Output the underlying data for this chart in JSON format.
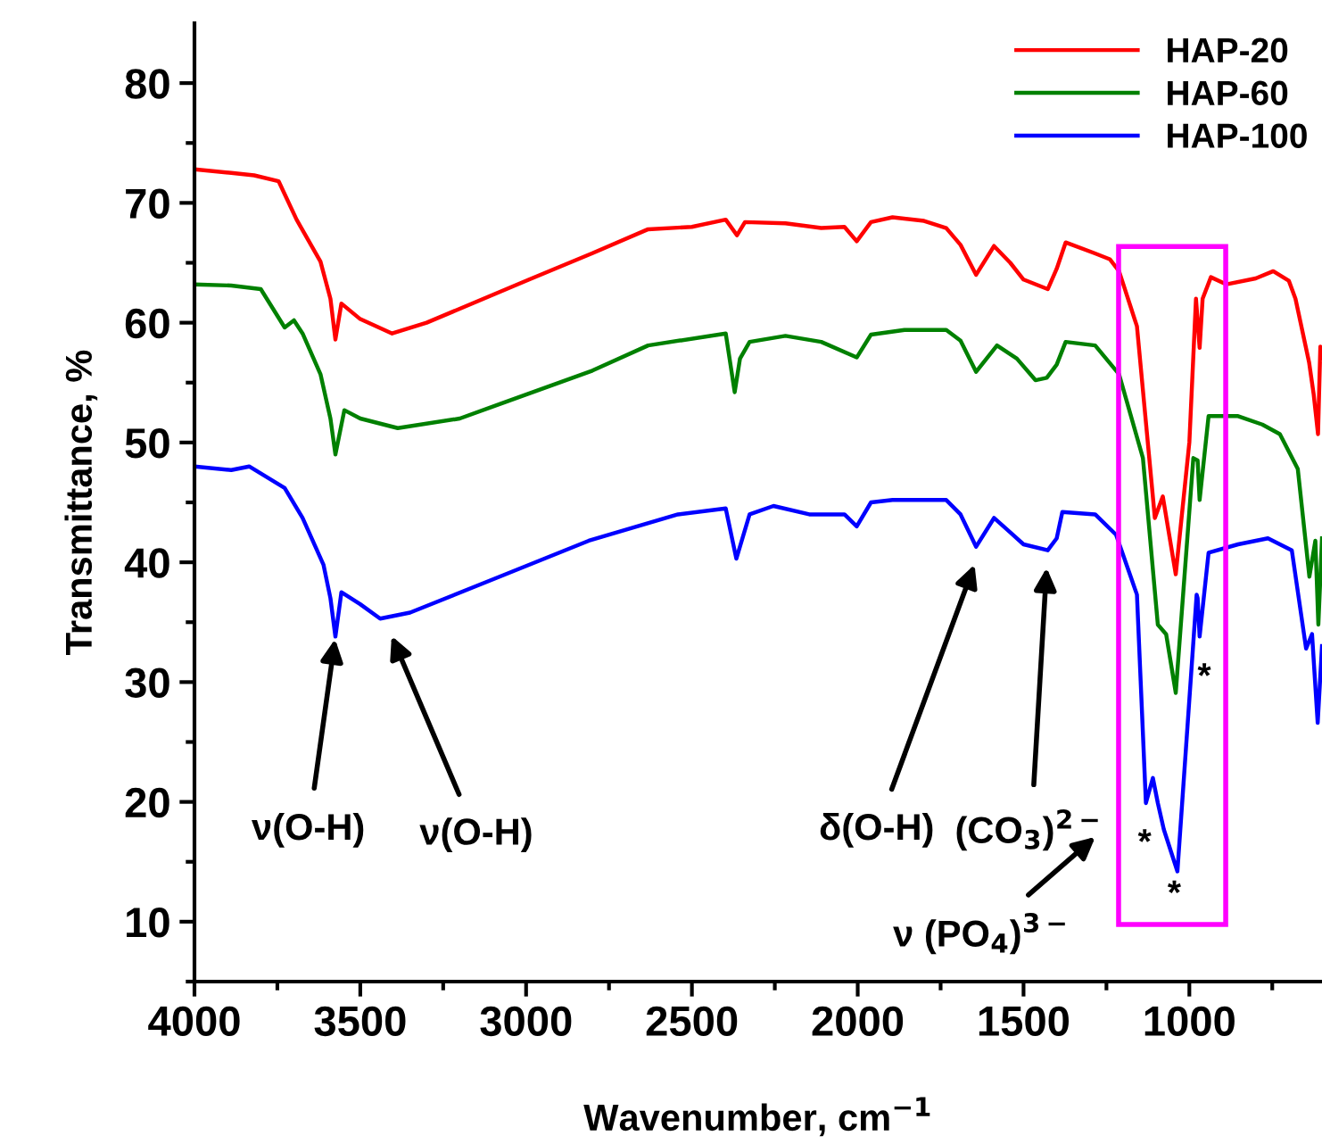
{
  "chart_data": {
    "type": "line",
    "xlabel": "Wavenumber, cm$^{−1}$",
    "ylabel": "Transmittance, %",
    "xlim": [
      4000,
      600
    ],
    "ylim": [
      5,
      85
    ],
    "xticks": [
      4000,
      {
        "value": 3750,
        "label": null
      },
      3500,
      {
        "value": 3250,
        "label": null
      },
      3000,
      {
        "value": 2750,
        "label": null
      },
      2500,
      {
        "value": 2250,
        "label": null
      },
      2000,
      {
        "value": 1750,
        "label": null
      },
      1500,
      {
        "value": 1250,
        "label": null
      },
      1000,
      {
        "value": 750,
        "label": null
      }
    ],
    "yticks": [
      {
        "value": 5,
        "label": null
      },
      10,
      {
        "value": 15,
        "label": null
      },
      20,
      {
        "value": 25,
        "label": null
      },
      30,
      {
        "value": 35,
        "label": null
      },
      40,
      {
        "value": 45,
        "label": null
      },
      50,
      {
        "value": 55,
        "label": null
      },
      60,
      {
        "value": 65,
        "label": null
      },
      70,
      {
        "value": 75,
        "label": null
      },
      80
    ],
    "grid": false,
    "legend": "top right",
    "marker": "none",
    "line_style": "solid",
    "series": [
      {
        "name": "HAP-20",
        "color": "#ff0000",
        "x": [
          4000,
          3889,
          3820,
          3746,
          3692,
          3620,
          3590,
          3575,
          3557,
          3500,
          3404,
          3300,
          2991,
          2800,
          2632,
          2500,
          2398,
          2364,
          2340,
          2218,
          2110,
          2040,
          2003,
          1960,
          1895,
          1800,
          1733,
          1690,
          1643,
          1589,
          1540,
          1500,
          1427,
          1400,
          1373,
          1286,
          1240,
          1212,
          1158,
          1104,
          1080,
          1041,
          1000,
          980,
          969,
          960,
          935,
          888,
          800,
          747,
          700,
          680,
          639,
          625,
          612,
          605,
          600
        ],
        "values": [
          72.8,
          72.5,
          72.3,
          71.8,
          68.6,
          65.1,
          62,
          58.6,
          61.6,
          60.3,
          59.1,
          60,
          63.6,
          65.8,
          67.8,
          68,
          68.6,
          67.3,
          68.4,
          68.3,
          67.9,
          68,
          66.8,
          68.4,
          68.8,
          68.5,
          67.9,
          66.5,
          64,
          66.4,
          65,
          63.6,
          62.8,
          64.5,
          66.7,
          65.8,
          65.3,
          64.3,
          59.7,
          43.7,
          45.5,
          39,
          50,
          62,
          57.9,
          62,
          63.8,
          63.2,
          63.7,
          64.3,
          63.5,
          62,
          56.7,
          54,
          50.7,
          58,
          57
        ]
      },
      {
        "name": "HAP-60",
        "color": "#008000",
        "x": [
          4000,
          3889,
          3800,
          3728,
          3700,
          3674,
          3620,
          3590,
          3575,
          3548,
          3500,
          3387,
          3200,
          3080,
          2800,
          2632,
          2398,
          2371,
          2355,
          2326,
          2218,
          2110,
          2003,
          1960,
          1859,
          1733,
          1690,
          1643,
          1580,
          1520,
          1464,
          1430,
          1400,
          1373,
          1284,
          1212,
          1140,
          1095,
          1070,
          1041,
          988,
          975,
          969,
          942,
          853,
          780,
          727,
          673,
          638,
          620,
          611,
          600
        ],
        "values": [
          63.2,
          63.1,
          62.8,
          59.6,
          60.2,
          59.1,
          55.7,
          52,
          49,
          52.7,
          52,
          51.2,
          52,
          53.2,
          56,
          58.1,
          59.1,
          54.2,
          57,
          58.4,
          58.9,
          58.4,
          57.1,
          59,
          59.4,
          59.4,
          58.5,
          55.9,
          58.1,
          57,
          55.2,
          55.4,
          56.5,
          58.4,
          58.1,
          55.7,
          48.7,
          34.8,
          34,
          29.1,
          48.7,
          48.5,
          45.2,
          52.2,
          52.2,
          51.5,
          50.7,
          47.8,
          38.8,
          41.8,
          34.8,
          42
        ]
      },
      {
        "name": "HAP-100",
        "color": "#0000ff",
        "x": [
          4000,
          3889,
          3835,
          3728,
          3674,
          3611,
          3590,
          3575,
          3557,
          3500,
          3440,
          3350,
          3080,
          2811,
          2542,
          2398,
          2366,
          2326,
          2254,
          2146,
          2040,
          2003,
          1960,
          1895,
          1733,
          1690,
          1643,
          1589,
          1540,
          1500,
          1427,
          1400,
          1383,
          1284,
          1221,
          1158,
          1131,
          1110,
          1095,
          1077,
          1036,
          978,
          975,
          969,
          942,
          853,
          763,
          691,
          648,
          630,
          613,
          600
        ],
        "values": [
          48,
          47.7,
          48,
          46.2,
          43.7,
          39.8,
          37,
          33.8,
          37.5,
          36.5,
          35.3,
          35.8,
          38.8,
          41.8,
          44,
          44.5,
          40.3,
          44,
          44.7,
          44,
          44,
          43,
          45,
          45.2,
          45.2,
          44,
          41.3,
          43.7,
          42.5,
          41.5,
          41,
          42,
          44.2,
          44,
          42.3,
          37.3,
          19.9,
          22,
          19.9,
          17.7,
          14.2,
          37.3,
          37,
          33.8,
          40.8,
          41.5,
          42,
          41,
          32.8,
          34,
          26.6,
          33
        ]
      }
    ],
    "annotations": [
      {
        "text": "ν(O-H)",
        "x": 3575,
        "y": 33.8
      },
      "ν(O-H)",
      "δ(O-H)",
      "(CO$_{3}$)$^{2−}$",
      "ν (PO$_{4}$)$^{3−}$",
      "*",
      "*",
      "*"
    ]
  }
}
